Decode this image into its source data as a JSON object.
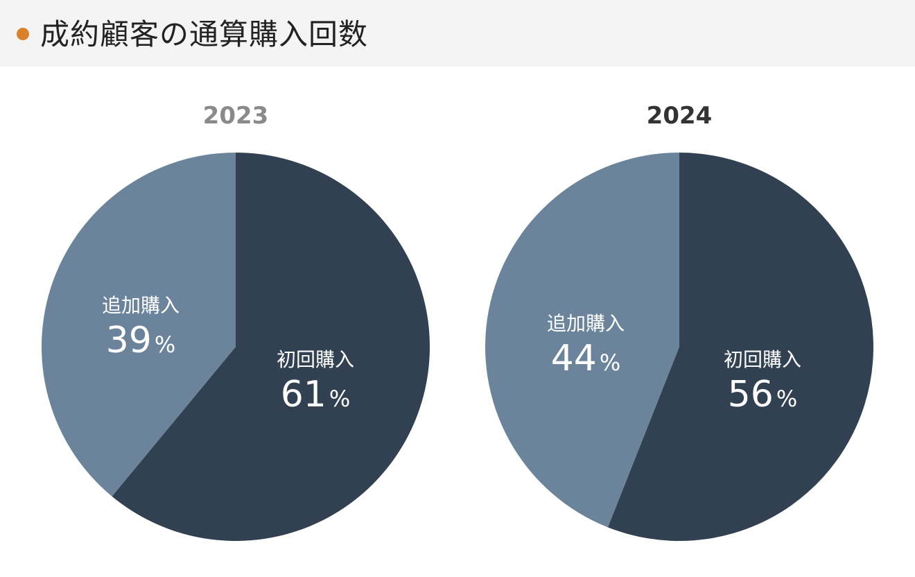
{
  "header": {
    "title": "成約顧客の通算購入回数"
  },
  "colors": {
    "accent_dot": "#d9822b",
    "first_purchase": "#314152",
    "repeat_purchase": "#6b849b",
    "label_text": "#ffffff",
    "year_2023": "#8a8a8a",
    "year_2024": "#333333"
  },
  "chart_data": [
    {
      "type": "pie",
      "title": "2023",
      "slices": [
        {
          "label": "初回購入",
          "value": 61,
          "display": "61",
          "unit": "%",
          "color": "#314152"
        },
        {
          "label": "追加購入",
          "value": 39,
          "display": "39",
          "unit": "%",
          "color": "#6b849b"
        }
      ]
    },
    {
      "type": "pie",
      "title": "2024",
      "slices": [
        {
          "label": "初回購入",
          "value": 56,
          "display": "56",
          "unit": "%",
          "color": "#314152"
        },
        {
          "label": "追加購入",
          "value": 44,
          "display": "44",
          "unit": "%",
          "color": "#6b849b"
        }
      ]
    }
  ]
}
